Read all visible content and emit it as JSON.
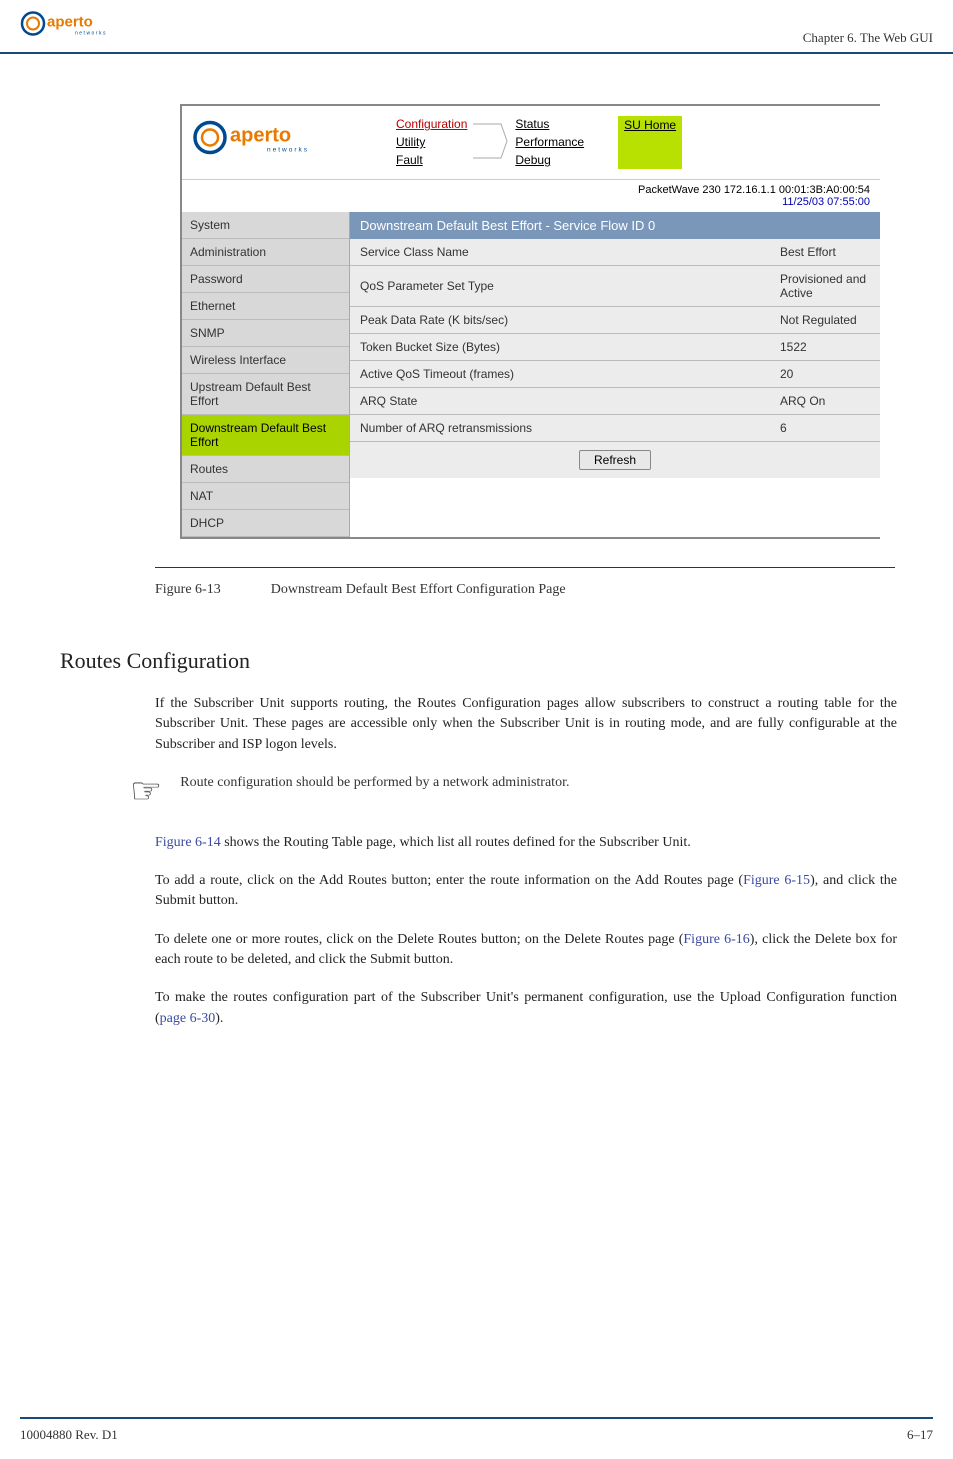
{
  "header": {
    "chapter": "Chapter 6.  The Web GUI"
  },
  "screenshot": {
    "nav": {
      "col1": [
        "Configuration",
        "Utility",
        "Fault"
      ],
      "col2": [
        "Status",
        "Performance",
        "Debug"
      ],
      "badge": "SU Home"
    },
    "info_line1": "PacketWave 230    172.16.1.1    00:01:3B:A0:00:54",
    "info_line2": "11/25/03    07:55:00",
    "sidebar": [
      {
        "label": "System",
        "selected": false
      },
      {
        "label": "Administration",
        "selected": false
      },
      {
        "label": "Password",
        "selected": false
      },
      {
        "label": "Ethernet",
        "selected": false
      },
      {
        "label": "SNMP",
        "selected": false
      },
      {
        "label": "Wireless Interface",
        "selected": false
      },
      {
        "label": "Upstream Default Best Effort",
        "selected": false
      },
      {
        "label": "Downstream Default Best Effort",
        "selected": true
      },
      {
        "label": "Routes",
        "selected": false
      },
      {
        "label": "NAT",
        "selected": false
      },
      {
        "label": "DHCP",
        "selected": false
      }
    ],
    "panel_title": "Downstream Default Best Effort - Service Flow ID 0",
    "rows": [
      {
        "label": "Service Class Name",
        "value": "Best Effort"
      },
      {
        "label": "QoS Parameter Set Type",
        "value": "Provisioned and Active"
      },
      {
        "label": "Peak Data Rate (K bits/sec)",
        "value": "Not Regulated"
      },
      {
        "label": "Token Bucket Size (Bytes)",
        "value": "1522"
      },
      {
        "label": "Active QoS Timeout (frames)",
        "value": "20"
      },
      {
        "label": "ARQ State",
        "value": "ARQ On"
      },
      {
        "label": "Number of ARQ retransmissions",
        "value": "6"
      }
    ],
    "refresh_label": "Refresh"
  },
  "figure": {
    "number": "Figure 6-13",
    "caption": "Downstream Default Best Effort Configuration Page"
  },
  "section": {
    "heading": "Routes Configuration",
    "para1": "If the Subscriber Unit supports routing, the Routes Configuration pages allow subscribers to construct a routing table for the Subscriber Unit. These pages are accessible only when the Subscriber Unit is in routing mode, and are fully configurable at the Subscriber and ISP logon levels.",
    "note": "Route configuration should be performed by a network administrator.",
    "para2_a": "Figure 6-14",
    "para2_b": " shows the Routing Table page, which list all routes defined for the Subscriber Unit.",
    "para3_a": "To add a route, click on the Add Routes button; enter the route information on the Add Routes page (",
    "para3_b": "Figure 6-15",
    "para3_c": "), and click the Submit button.",
    "para4_a": "To delete one or more routes, click on the Delete Routes button; on the Delete Routes page (",
    "para4_b": "Figure 6-16",
    "para4_c": "), click the Delete box for each route to be deleted, and click the Submit but­ton.",
    "para5_a": "To make the routes configuration part of the Subscriber Unit's permanent configuration, use the Upload Configuration function (",
    "para5_b": "page 6-30",
    "para5_c": ")."
  },
  "footer": {
    "left": "10004880 Rev. D1",
    "right": "6–17"
  }
}
